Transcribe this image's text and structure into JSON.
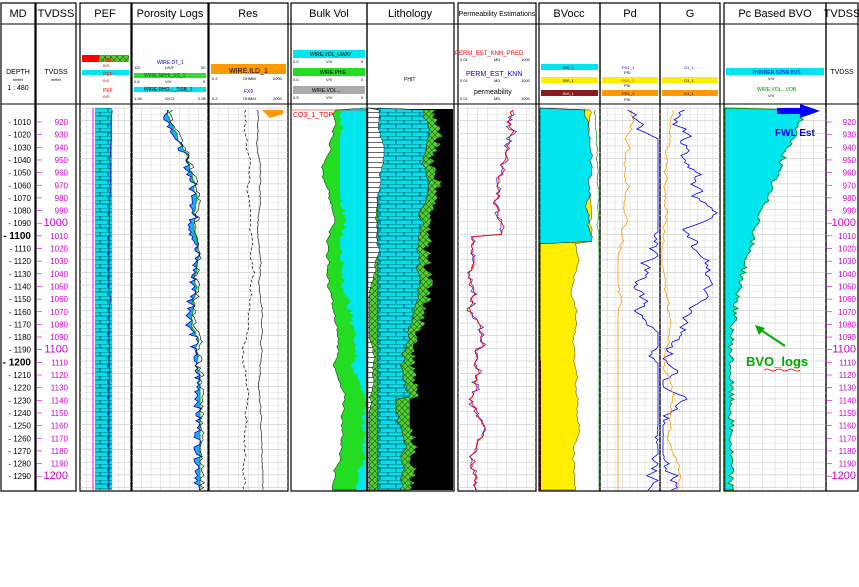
{
  "tracks": {
    "md": {
      "title": "MD",
      "unit": "meter",
      "scale_top": "DEPTH",
      "scale_bottom": "1 : 480"
    },
    "tvdss_left": {
      "title": "TVDSS",
      "unit": "meter",
      "label": "TVDSS"
    },
    "pef": {
      "title": "PEF",
      "curves": [
        "PEF",
        "PEF",
        "PEF"
      ],
      "labels": [
        "B/E",
        "B/E",
        "B/E"
      ]
    },
    "porosity": {
      "title": "Porosity Logs",
      "curves": [
        "WIRE.DT_1",
        "WIRE.NPHI_SS_1",
        "WIRE.RHO..._DSB_1"
      ],
      "units": [
        "US/F",
        "V/V",
        "G/C3"
      ],
      "scale_left": [
        "110",
        "0.6",
        "1.94"
      ],
      "scale_right": [
        "50",
        "0",
        "2.95"
      ]
    },
    "res": {
      "title": "Res",
      "curves": [
        "WIRE.ILD_1",
        "FX9"
      ],
      "units": [
        "OHMM",
        "OHMM"
      ],
      "scale_left": [
        "0.2",
        "0.2"
      ],
      "scale_right": [
        "2000",
        "2000"
      ]
    },
    "bulkvol": {
      "title": "Bulk Vol",
      "curves": [
        "WIRE.VOL_UWAT",
        "WIRE.PHIE",
        "WIRE.VOL..."
      ],
      "units": [
        "V/V",
        "V/V",
        "V/V"
      ],
      "scale_left": [
        "0.5",
        "0.5",
        "0.5"
      ],
      "scale_right": [
        "0",
        "0",
        "0"
      ],
      "marker": "CO3_1_TOP"
    },
    "lithology": {
      "title": "Lithology",
      "curve": "PHIT"
    },
    "perm": {
      "title": "Permeability Estimations",
      "curves": [
        "PERM_EST_KNN_PRED",
        "PERM_EST_KNN",
        "permeability"
      ],
      "units": [
        "MD",
        "MD",
        "MD"
      ],
      "scale_left": [
        "0.01",
        "0.01",
        "0.01"
      ],
      "scale_right": [
        "1000",
        "1000",
        "1000"
      ]
    },
    "bvocc": {
      "title": "BVocc",
      "curves": [
        "BVI_1",
        "BVI_1",
        "BVI_1"
      ]
    },
    "pd": {
      "title": "Pd",
      "curves": [
        "PD1_1",
        "PD1_1",
        "PD1_1"
      ],
      "units": [
        "PSI",
        "PSI",
        "PSI"
      ]
    },
    "g": {
      "title": "G",
      "curves": [
        "G1_1",
        "G1_1",
        "G1_1"
      ]
    },
    "bvo": {
      "title": "Pc Based BVO",
      "curves": [
        "THINNER.SZNN.BVS",
        "WIRE.VOL...VOB"
      ],
      "units": [
        "V/V",
        "V/V"
      ]
    },
    "tvdss_right": {
      "title": "TVDSS",
      "label": "TVDSS"
    }
  },
  "md_ticks": [
    1010,
    1020,
    1030,
    1040,
    1050,
    1060,
    1070,
    1080,
    1090,
    1100,
    1110,
    1120,
    1130,
    1140,
    1150,
    1160,
    1170,
    1180,
    1190,
    1200,
    1210,
    1220,
    1230,
    1240,
    1250,
    1260,
    1270,
    1280,
    1290
  ],
  "tvdss_ticks": [
    920,
    930,
    940,
    950,
    960,
    970,
    980,
    990,
    1000,
    1010,
    1020,
    1030,
    1040,
    1050,
    1060,
    1070,
    1080,
    1090,
    1100,
    1110,
    1120,
    1130,
    1140,
    1150,
    1160,
    1170,
    1180,
    1190,
    1200
  ],
  "annotations": {
    "fwl": "FWL Est",
    "bvo_logs": "BVO_logs"
  },
  "colors": {
    "water": "#00e5ee",
    "gas": "#22dd22",
    "oil_brown": "#8b1a1a",
    "yellow": "#ffee00",
    "blue": "#0000ff",
    "red": "#ff0000",
    "orange": "#ff9900",
    "green": "#00cc00",
    "magenta": "#cc00cc",
    "black": "#000000"
  }
}
